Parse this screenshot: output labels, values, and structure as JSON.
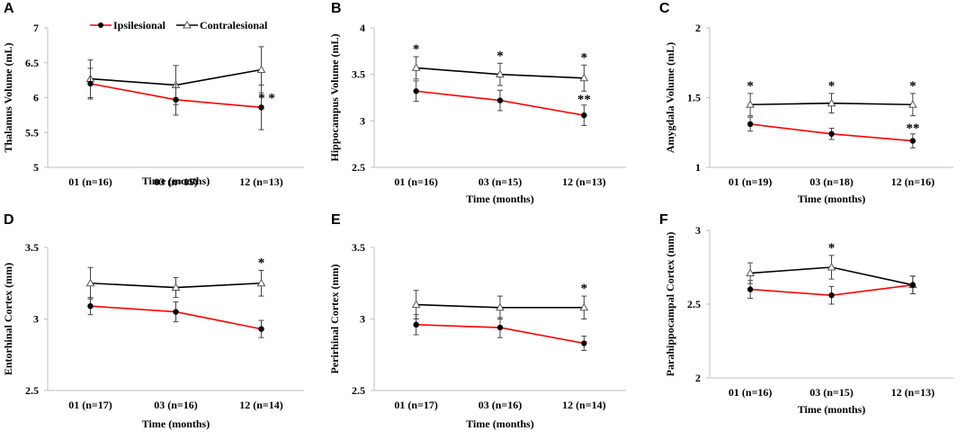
{
  "legend": {
    "ipsi": "Ipsilesional",
    "contra": "Contralesional"
  },
  "colors": {
    "ipsi": "#ff0000",
    "contra": "#000000",
    "error": "#444444",
    "axis": "#bfbfbf"
  },
  "chart_data": [
    {
      "panel": "A",
      "type": "line",
      "ylabel": "Thalamus Volume (mL)",
      "xlabel": "Time (months)",
      "categories": [
        "01 (n=16)",
        "03 (n=15)",
        "12 (n=13)"
      ],
      "ylim": [
        5,
        7
      ],
      "yticks": [
        "5",
        "5.5",
        "6",
        "6.5",
        "7"
      ],
      "legend": true,
      "series": [
        {
          "name": "Ipsilesional",
          "values": [
            6.2,
            5.97,
            5.86
          ],
          "err": [
            0.22,
            0.22,
            0.32
          ]
        },
        {
          "name": "Contralesional",
          "values": [
            6.27,
            6.18,
            6.4
          ],
          "err": [
            0.27,
            0.28,
            0.33
          ]
        }
      ],
      "significance": [
        "",
        "",
        "* *"
      ]
    },
    {
      "panel": "B",
      "type": "line",
      "ylabel": "Hippocampus Volume (mL)",
      "xlabel": "Time (months)",
      "categories": [
        "01 (n=16)",
        "03 (n=15)",
        "12 (n=13)"
      ],
      "ylim": [
        2.5,
        4
      ],
      "yticks": [
        "2.5",
        "3",
        "3.5",
        "4"
      ],
      "legend": false,
      "series": [
        {
          "name": "Ipsilesional",
          "values": [
            3.32,
            3.22,
            3.06
          ],
          "err": [
            0.11,
            0.11,
            0.11
          ]
        },
        {
          "name": "Contralesional",
          "values": [
            3.57,
            3.5,
            3.46
          ],
          "err": [
            0.12,
            0.12,
            0.14
          ]
        }
      ],
      "significance": [
        "*",
        "*",
        "*"
      ],
      "significance_ipsi": [
        "",
        "",
        "**"
      ]
    },
    {
      "panel": "C",
      "type": "line",
      "ylabel": "Amygdala Volume (mL)",
      "xlabel": "Time (months)",
      "categories": [
        "01 (n=19)",
        "03 (n=18)",
        "12 (n=16)"
      ],
      "ylim": [
        1,
        2
      ],
      "yticks": [
        "1",
        "1.5",
        "2"
      ],
      "legend": false,
      "series": [
        {
          "name": "Ipsilesional",
          "values": [
            1.31,
            1.24,
            1.19
          ],
          "err": [
            0.05,
            0.04,
            0.05
          ]
        },
        {
          "name": "Contralesional",
          "values": [
            1.45,
            1.46,
            1.45
          ],
          "err": [
            0.08,
            0.07,
            0.08
          ]
        }
      ],
      "significance": [
        "*",
        "*",
        "*"
      ],
      "significance_ipsi": [
        "",
        "",
        "**"
      ]
    },
    {
      "panel": "D",
      "type": "line",
      "ylabel": "Entorhinal Cortex (mm)",
      "xlabel": "Time (months)",
      "categories": [
        "01 (n=17)",
        "03 (n=16)",
        "12 (n=14)"
      ],
      "ylim": [
        2.5,
        3.5
      ],
      "yticks": [
        "2.5",
        "3",
        "3.5"
      ],
      "legend": false,
      "series": [
        {
          "name": "Ipsilesional",
          "values": [
            3.09,
            3.05,
            2.93
          ],
          "err": [
            0.06,
            0.07,
            0.06
          ]
        },
        {
          "name": "Contralesional",
          "values": [
            3.25,
            3.22,
            3.25
          ],
          "err": [
            0.11,
            0.07,
            0.09
          ]
        }
      ],
      "significance": [
        "",
        "",
        "*"
      ]
    },
    {
      "panel": "E",
      "type": "line",
      "ylabel": "Perirhinal Cortex  (mm)",
      "xlabel": "Time (months)",
      "categories": [
        "01 (n=17)",
        "03 (n=16)",
        "12 (n=14)"
      ],
      "ylim": [
        2.5,
        3.5
      ],
      "yticks": [
        "2.5",
        "3",
        "3.5"
      ],
      "legend": false,
      "series": [
        {
          "name": "Ipsilesional",
          "values": [
            2.96,
            2.94,
            2.83
          ],
          "err": [
            0.07,
            0.07,
            0.05
          ]
        },
        {
          "name": "Contralesional",
          "values": [
            3.1,
            3.08,
            3.08
          ],
          "err": [
            0.1,
            0.08,
            0.08
          ]
        }
      ],
      "significance": [
        "",
        "",
        "*"
      ]
    },
    {
      "panel": "F",
      "type": "line",
      "ylabel": "Parahippocampal Cortex (mm)",
      "xlabel": "Time (months)",
      "categories": [
        "01 (n=16)",
        "03 (n=15)",
        "12 (n=13)"
      ],
      "ylim": [
        2,
        3
      ],
      "yticks": [
        "2",
        "2.5",
        "3"
      ],
      "legend": false,
      "series": [
        {
          "name": "Ipsilesional",
          "values": [
            2.6,
            2.56,
            2.63
          ],
          "err": [
            0.06,
            0.06,
            0.06
          ]
        },
        {
          "name": "Contralesional",
          "values": [
            2.71,
            2.75,
            2.63
          ],
          "err": [
            0.07,
            0.08,
            0.06
          ]
        }
      ],
      "significance": [
        "",
        "*",
        ""
      ]
    }
  ]
}
